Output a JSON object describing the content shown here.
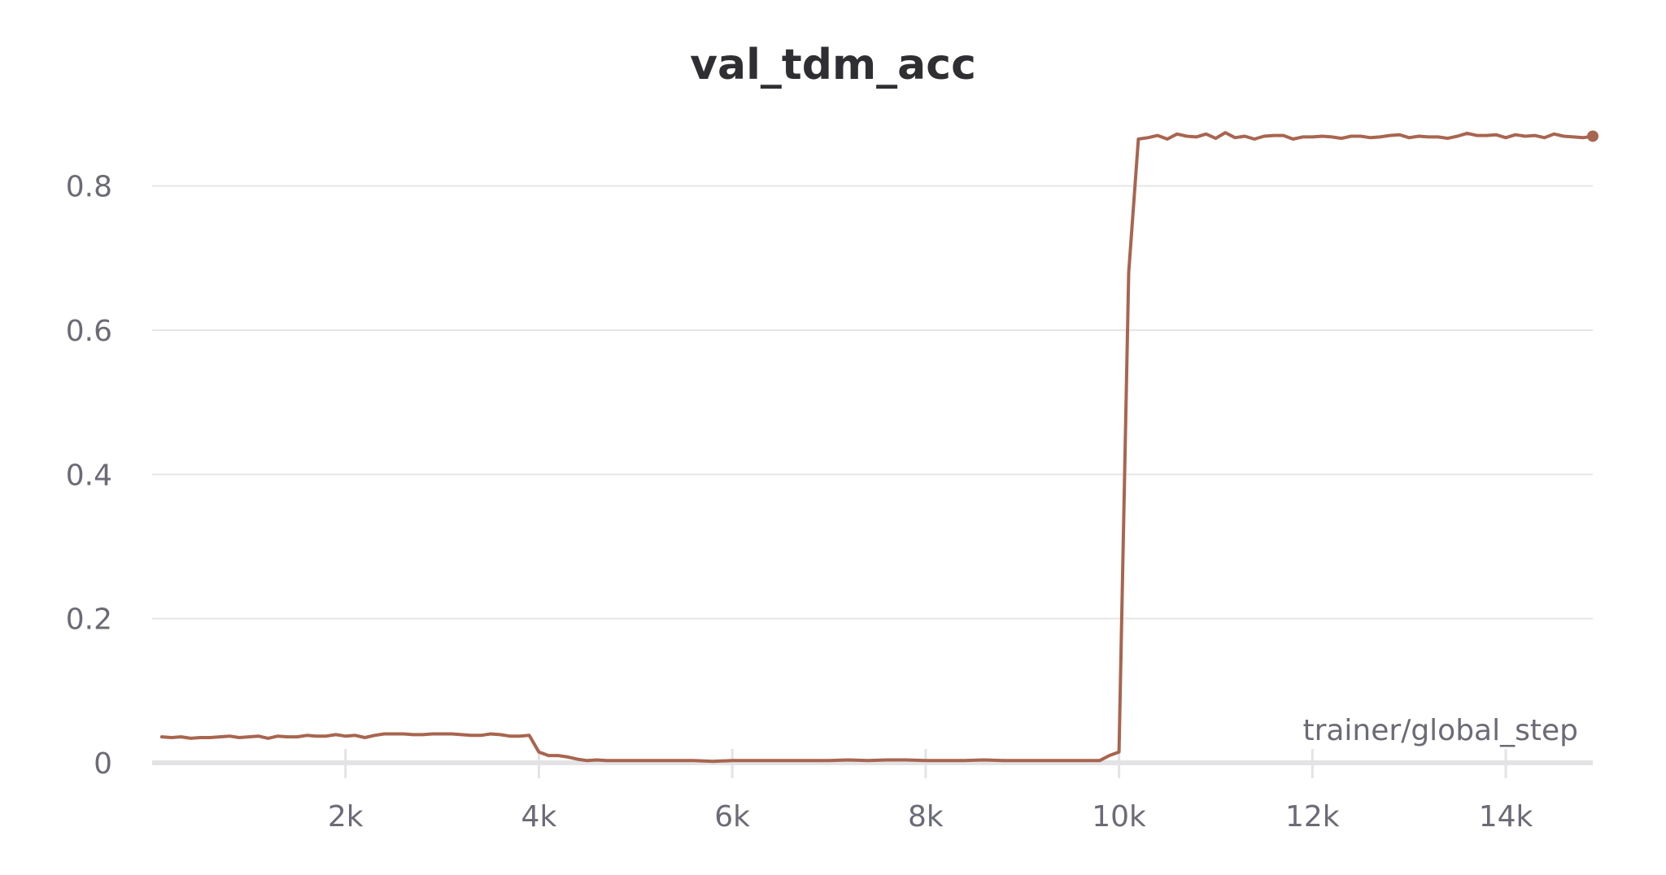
{
  "chart_data": {
    "type": "line",
    "title": "val_tdm_acc",
    "xlabel": "trainer/global_step",
    "ylabel": "",
    "xlim": [
      0,
      14900
    ],
    "ylim": [
      0,
      0.9
    ],
    "grid": true,
    "legend": "none",
    "x_ticks": [
      2000,
      4000,
      6000,
      8000,
      10000,
      12000,
      14000
    ],
    "x_tick_labels": [
      "2k",
      "4k",
      "6k",
      "8k",
      "10k",
      "12k",
      "14k"
    ],
    "y_ticks": [
      0,
      0.2,
      0.4,
      0.6,
      0.8
    ],
    "y_tick_labels": [
      "0",
      "0.2",
      "0.4",
      "0.6",
      "0.8"
    ],
    "series": [
      {
        "color": "#a8654f",
        "x": [
          100,
          200,
          300,
          400,
          500,
          600,
          700,
          800,
          900,
          1000,
          1100,
          1200,
          1300,
          1400,
          1500,
          1600,
          1700,
          1800,
          1900,
          2000,
          2100,
          2200,
          2300,
          2400,
          2500,
          2600,
          2700,
          2800,
          2900,
          3000,
          3100,
          3200,
          3300,
          3400,
          3500,
          3600,
          3700,
          3800,
          3900,
          4000,
          4100,
          4200,
          4300,
          4400,
          4500,
          4600,
          4700,
          4800,
          4900,
          5000,
          5200,
          5400,
          5600,
          5800,
          6000,
          6200,
          6400,
          6600,
          6800,
          7000,
          7200,
          7400,
          7600,
          7800,
          8000,
          8200,
          8400,
          8600,
          8800,
          9000,
          9200,
          9400,
          9600,
          9800,
          9900,
          10000,
          10100,
          10200,
          10300,
          10400,
          10500,
          10600,
          10700,
          10800,
          10900,
          11000,
          11100,
          11200,
          11300,
          11400,
          11500,
          11600,
          11700,
          11800,
          11900,
          12000,
          12100,
          12200,
          12300,
          12400,
          12500,
          12600,
          12700,
          12800,
          12900,
          13000,
          13100,
          13200,
          13300,
          13400,
          13500,
          13600,
          13700,
          13800,
          13900,
          14000,
          14100,
          14200,
          14300,
          14400,
          14500,
          14600,
          14700,
          14800,
          14900
        ],
        "y": [
          0.036,
          0.035,
          0.036,
          0.034,
          0.035,
          0.035,
          0.036,
          0.037,
          0.035,
          0.036,
          0.037,
          0.034,
          0.037,
          0.036,
          0.036,
          0.038,
          0.037,
          0.037,
          0.039,
          0.037,
          0.038,
          0.035,
          0.038,
          0.04,
          0.04,
          0.04,
          0.039,
          0.039,
          0.04,
          0.04,
          0.04,
          0.039,
          0.038,
          0.038,
          0.04,
          0.039,
          0.037,
          0.037,
          0.038,
          0.015,
          0.01,
          0.01,
          0.008,
          0.005,
          0.003,
          0.004,
          0.003,
          0.003,
          0.003,
          0.003,
          0.003,
          0.003,
          0.003,
          0.002,
          0.003,
          0.003,
          0.003,
          0.003,
          0.003,
          0.003,
          0.004,
          0.003,
          0.004,
          0.004,
          0.003,
          0.003,
          0.003,
          0.004,
          0.003,
          0.003,
          0.003,
          0.003,
          0.003,
          0.003,
          0.01,
          0.015,
          0.68,
          0.865,
          0.867,
          0.87,
          0.865,
          0.872,
          0.869,
          0.868,
          0.872,
          0.866,
          0.874,
          0.867,
          0.869,
          0.865,
          0.869,
          0.87,
          0.87,
          0.865,
          0.868,
          0.868,
          0.869,
          0.868,
          0.866,
          0.869,
          0.869,
          0.867,
          0.868,
          0.87,
          0.871,
          0.867,
          0.869,
          0.868,
          0.868,
          0.866,
          0.869,
          0.873,
          0.87,
          0.87,
          0.871,
          0.867,
          0.871,
          0.869,
          0.87,
          0.867,
          0.872,
          0.869,
          0.868,
          0.867,
          0.869
        ]
      }
    ]
  }
}
